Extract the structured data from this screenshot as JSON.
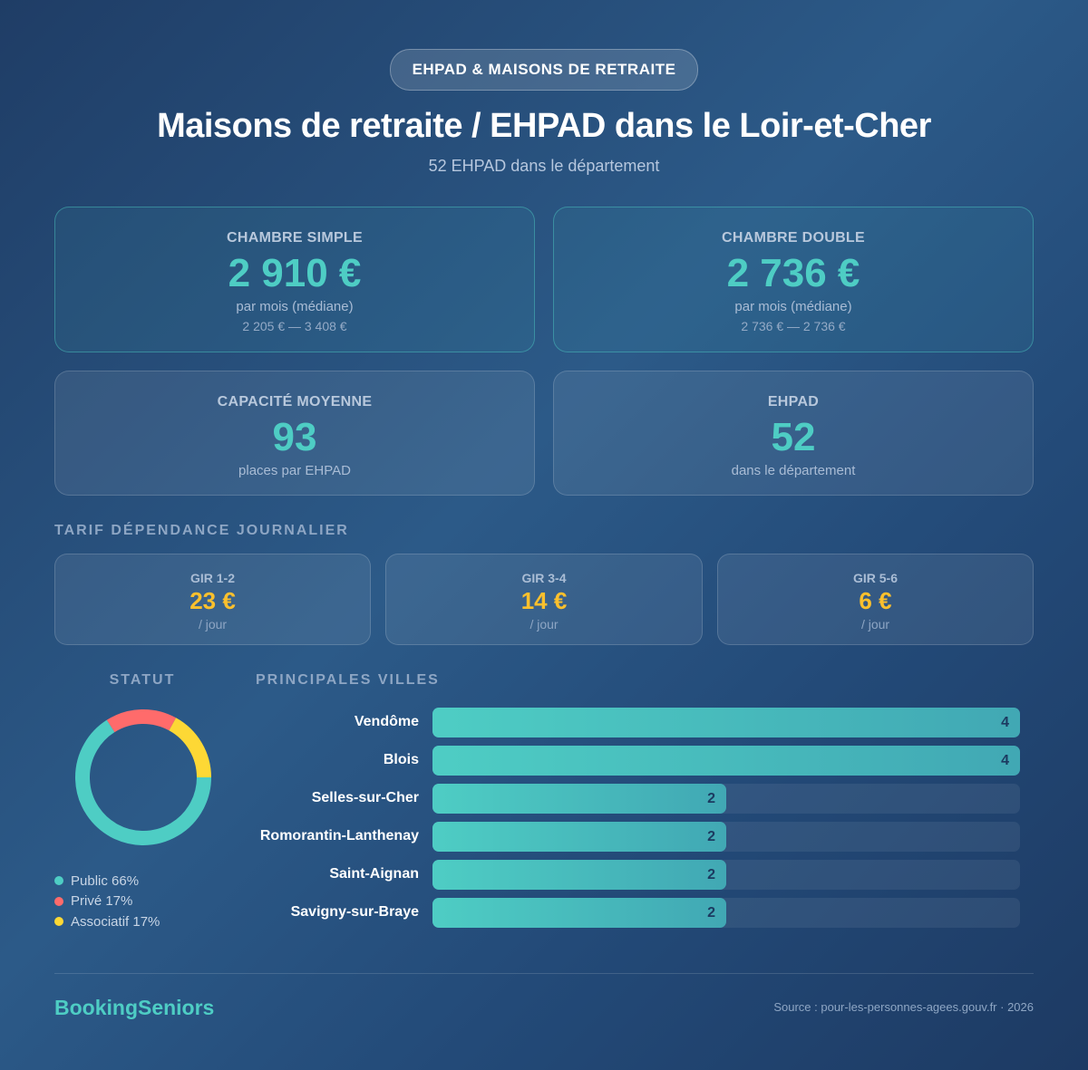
{
  "header": {
    "badge": "EHPAD & MAISONS DE RETRAITE",
    "title": "Maisons de retraite / EHPAD dans le Loir-et-Cher",
    "subtitle": "52 EHPAD dans le département"
  },
  "cards": {
    "simple": {
      "label": "CHAMBRE SIMPLE",
      "value": "2 910 €",
      "sub": "par mois (médiane)",
      "range": "2 205 € — 3 408 €"
    },
    "double": {
      "label": "CHAMBRE DOUBLE",
      "value": "2 736 €",
      "sub": "par mois (médiane)",
      "range": "2 736 € — 2 736 €"
    },
    "capacite": {
      "label": "CAPACITÉ MOYENNE",
      "value": "93",
      "sub": "places par EHPAD"
    },
    "ehpad": {
      "label": "EHPAD",
      "value": "52",
      "sub": "dans le département"
    }
  },
  "dependance": {
    "title": "TARIF DÉPENDANCE JOURNALIER",
    "items": [
      {
        "label": "GIR 1-2",
        "value": "23 €",
        "sub": "/ jour"
      },
      {
        "label": "GIR 3-4",
        "value": "14 €",
        "sub": "/ jour"
      },
      {
        "label": "GIR 5-6",
        "value": "6 €",
        "sub": "/ jour"
      }
    ]
  },
  "statut": {
    "title": "STATUT",
    "legend": [
      {
        "label": "Public 66%",
        "color": "#4ecdc4"
      },
      {
        "label": "Privé 17%",
        "color": "#ff6b6b"
      },
      {
        "label": "Associatif 17%",
        "color": "#fdd835"
      }
    ]
  },
  "villes": {
    "title": "PRINCIPALES VILLES",
    "items": [
      {
        "city": "Vendôme",
        "count": "4"
      },
      {
        "city": "Blois",
        "count": "4"
      },
      {
        "city": "Selles-sur-Cher",
        "count": "2"
      },
      {
        "city": "Romorantin-Lanthenay",
        "count": "2"
      },
      {
        "city": "Saint-Aignan",
        "count": "2"
      },
      {
        "city": "Savigny-sur-Braye",
        "count": "2"
      }
    ]
  },
  "footer": {
    "brand": "BookingSeniors",
    "source": "Source : pour-les-personnes-agees.gouv.fr · 2026"
  },
  "colors": {
    "accent": "#4ecdc4",
    "gir": "#fbc02d",
    "public": "#4ecdc4",
    "prive": "#ff6b6b",
    "associatif": "#fdd835"
  },
  "chart_data": [
    {
      "type": "pie",
      "title": "STATUT",
      "categories": [
        "Public",
        "Privé",
        "Associatif"
      ],
      "values": [
        66,
        17,
        17
      ],
      "colors": [
        "#4ecdc4",
        "#ff6b6b",
        "#fdd835"
      ],
      "donut": true,
      "legend_position": "bottom"
    },
    {
      "type": "bar",
      "orientation": "horizontal",
      "title": "PRINCIPALES VILLES",
      "categories": [
        "Vendôme",
        "Blois",
        "Selles-sur-Cher",
        "Romorantin-Lanthenay",
        "Saint-Aignan",
        "Savigny-sur-Braye"
      ],
      "values": [
        4,
        4,
        2,
        2,
        2,
        2
      ],
      "xlim": [
        0,
        4
      ],
      "grid": false,
      "data_labels": true
    },
    {
      "type": "table",
      "title": "TARIF DÉPENDANCE JOURNALIER",
      "categories": [
        "GIR 1-2",
        "GIR 3-4",
        "GIR 5-6"
      ],
      "values": [
        23,
        14,
        6
      ],
      "unit": "€ / jour"
    }
  ]
}
